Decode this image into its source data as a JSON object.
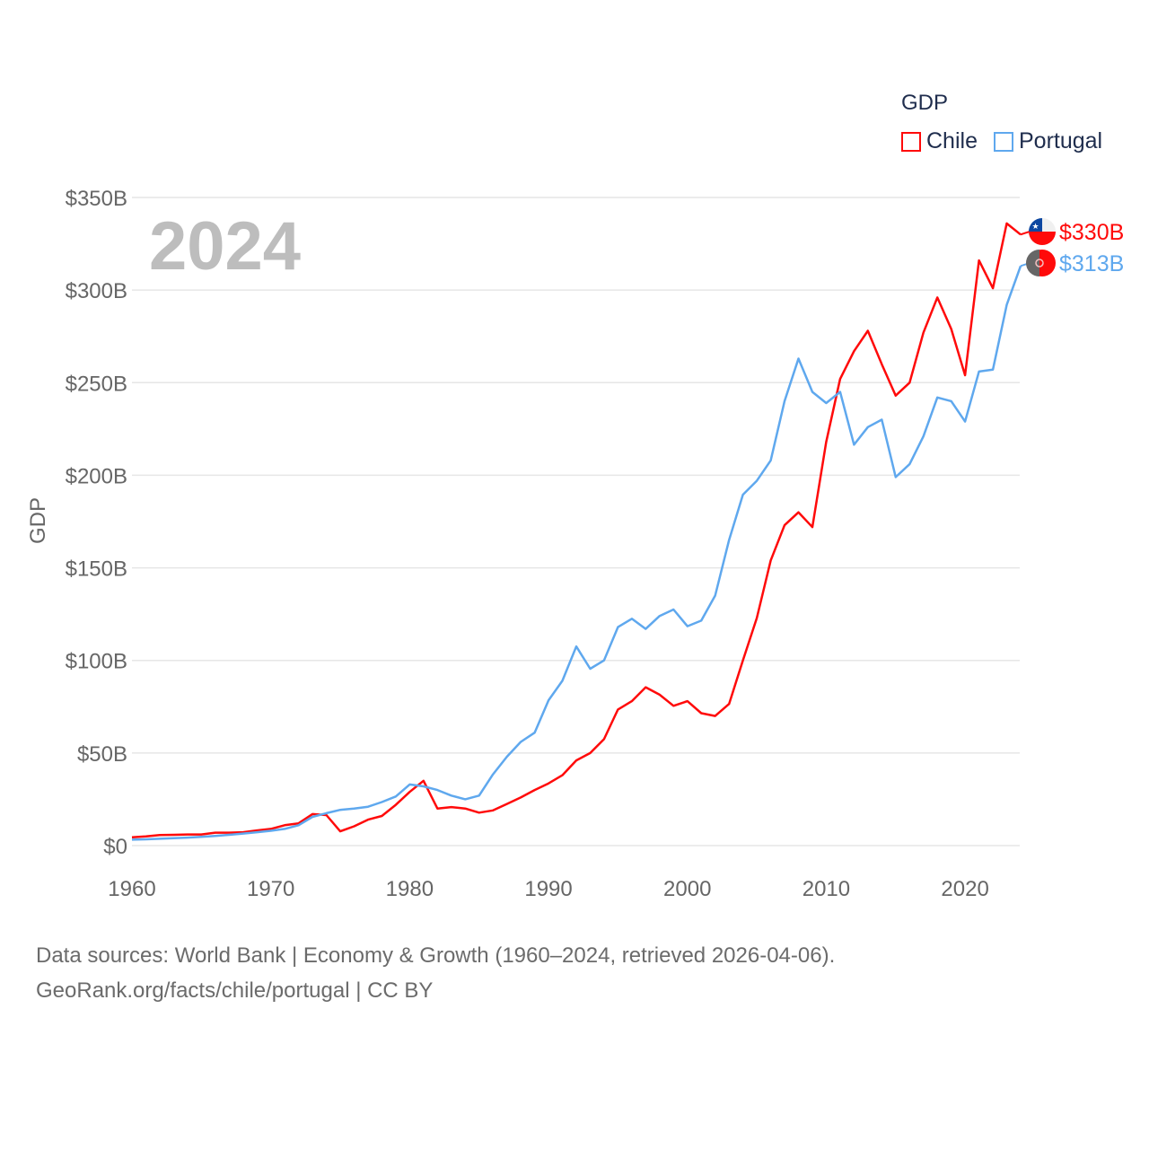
{
  "legend": {
    "title": "GDP",
    "items": [
      {
        "label": "Chile"
      },
      {
        "label": "Portugal"
      }
    ]
  },
  "footer": {
    "line1": "Data sources: World Bank | Economy & Growth (1960–2024, retrieved 2026-04-06).",
    "line2": "GeoRank.org/facts/chile/portugal | CC BY"
  },
  "chart_data": {
    "type": "line",
    "title": "2024",
    "xlabel": "",
    "ylabel": "GDP",
    "xlim": [
      1960,
      2024
    ],
    "ylim": [
      0,
      350
    ],
    "yticks": [
      0,
      50,
      100,
      150,
      200,
      250,
      300,
      350
    ],
    "ytick_labels": [
      "$0",
      "$50B",
      "$100B",
      "$150B",
      "$200B",
      "$250B",
      "$300B",
      "$350B"
    ],
    "xticks": [
      1960,
      1970,
      1980,
      1990,
      2000,
      2010,
      2020
    ],
    "xtick_labels": [
      "1960",
      "1970",
      "1980",
      "1990",
      "2000",
      "2010",
      "2020"
    ],
    "grid": true,
    "legend_position": "top-right",
    "units": "billions USD",
    "x_start": 1960,
    "series": [
      {
        "name": "Chile",
        "color": "#ff0a0a",
        "end_label": "$330B",
        "values": [
          4.5,
          5.0,
          5.7,
          5.8,
          6.0,
          6.0,
          7.0,
          7.0,
          7.2,
          8.2,
          9.0,
          11.0,
          12.0,
          17.0,
          16.5,
          7.7,
          10.4,
          14.0,
          16.0,
          22,
          29,
          35,
          20,
          20.8,
          20,
          17.8,
          19,
          22.5,
          26,
          30,
          33.6,
          38,
          46,
          50,
          57.5,
          73.5,
          78,
          85.5,
          81.5,
          75.5,
          78,
          71.5,
          70,
          76.5,
          100,
          122.9,
          154,
          173,
          180,
          172,
          218,
          252,
          267,
          278,
          260,
          243,
          250,
          277,
          296,
          279,
          254,
          316,
          301,
          336,
          330
        ]
      },
      {
        "name": "Portugal",
        "color": "#5fa8ee",
        "end_label": "$313B",
        "values": [
          3.2,
          3.4,
          3.7,
          4.0,
          4.3,
          4.7,
          5.2,
          5.8,
          6.5,
          7.2,
          8.0,
          9.0,
          11.0,
          15.5,
          17.5,
          19.3,
          20.0,
          21.0,
          23.5,
          26.5,
          33,
          32,
          30,
          27,
          25,
          27,
          38.5,
          48,
          56,
          61,
          78.5,
          89,
          107.5,
          95.5,
          100,
          118,
          122.5,
          117,
          124,
          127.5,
          118.5,
          121.5,
          135,
          165,
          189.5,
          197,
          208,
          240,
          263,
          245,
          239,
          245,
          216.5,
          226,
          230,
          199,
          206,
          221,
          242,
          240,
          229,
          256,
          257,
          292,
          313
        ]
      }
    ]
  }
}
